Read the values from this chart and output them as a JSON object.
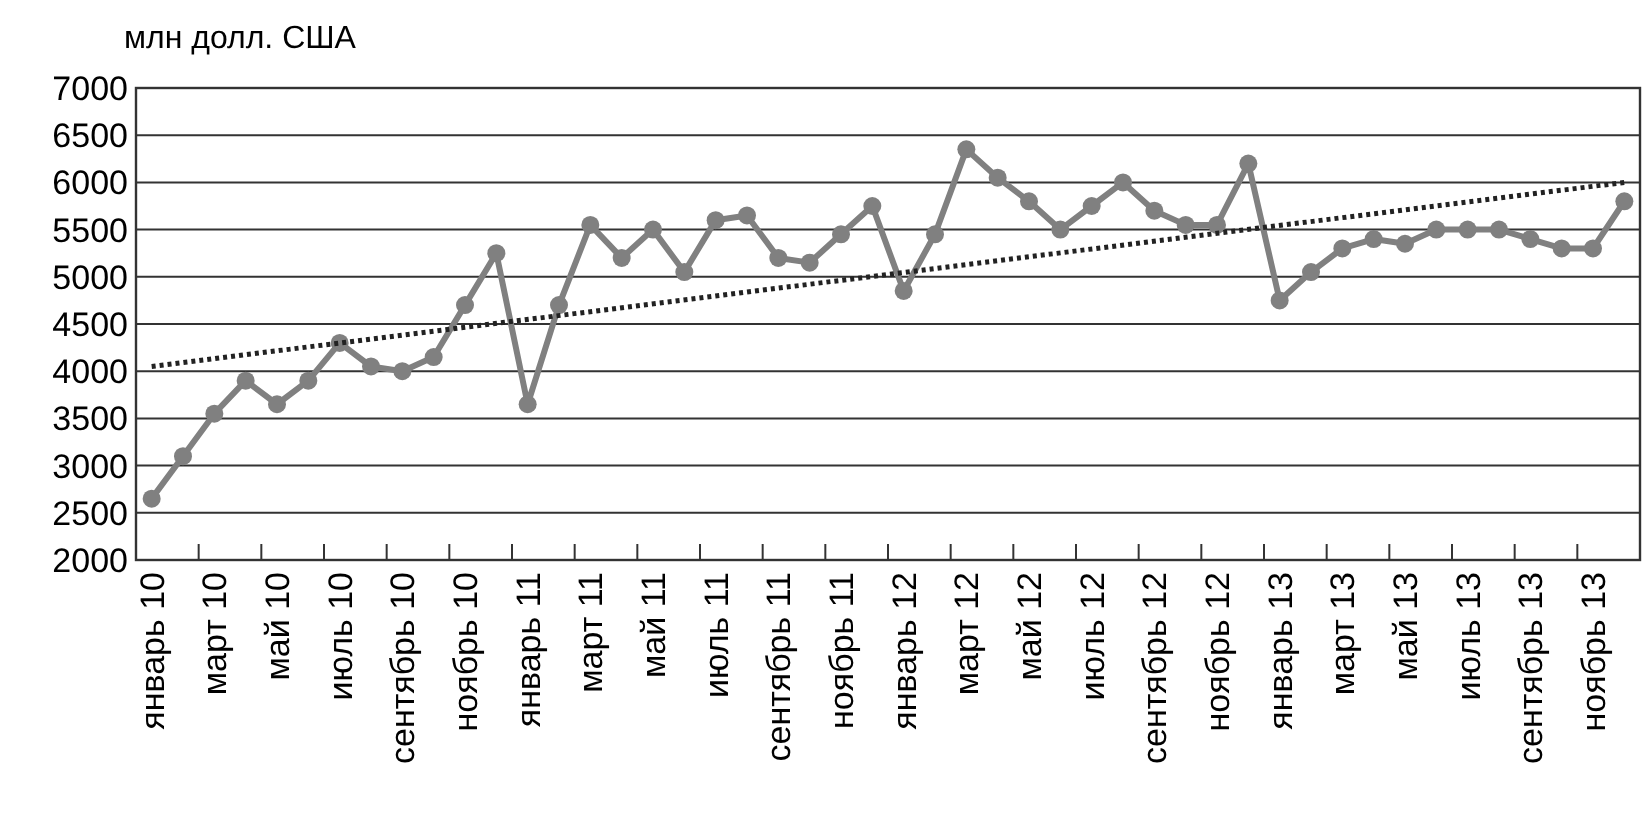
{
  "chart_data": {
    "type": "line",
    "ylabel": "млн долл. США",
    "categories": [
      "январь 10",
      null,
      "март 10",
      null,
      "май 10",
      null,
      "июль 10",
      null,
      "сентябрь 10",
      null,
      "ноябрь 10",
      null,
      "январь  11",
      null,
      "март 11",
      null,
      "май 11",
      null,
      "июль 11",
      null,
      "сентябрь 11",
      null,
      "ноябрь 11",
      null,
      "январь 12",
      null,
      "март 12",
      null,
      "май 12",
      null,
      "июль 12",
      null,
      "сентябрь 12",
      null,
      "ноябрь 12",
      null,
      "январь 13",
      null,
      "март 13",
      null,
      "май 13",
      null,
      "июль 13",
      null,
      "сентябрь 13",
      null,
      "ноябрь 13",
      null
    ],
    "series": [
      {
        "color": "#808080",
        "marker": "circle",
        "line_style": "solid",
        "values": [
          2650,
          3100,
          3550,
          3900,
          3650,
          3900,
          4300,
          4050,
          4000,
          4150,
          4700,
          5250,
          3650,
          4700,
          5550,
          5200,
          5500,
          5050,
          5600,
          5650,
          5200,
          5150,
          5450,
          5750,
          4850,
          5450,
          6350,
          6050,
          5800,
          5500,
          5750,
          6000,
          5700,
          5550,
          5550,
          6200,
          4750,
          5050,
          5300,
          5400,
          5350,
          5500,
          5500,
          5500,
          5400,
          5300,
          5300,
          5800
        ]
      },
      {
        "type": "line",
        "color": "#222222",
        "marker": "none",
        "line_style": "dotted",
        "values": [
          4050,
          null,
          null,
          null,
          null,
          null,
          null,
          null,
          null,
          null,
          null,
          null,
          null,
          null,
          null,
          null,
          null,
          null,
          null,
          null,
          null,
          null,
          null,
          null,
          null,
          null,
          null,
          null,
          null,
          null,
          null,
          null,
          null,
          null,
          null,
          null,
          null,
          null,
          null,
          null,
          null,
          null,
          null,
          null,
          null,
          null,
          null,
          6000
        ]
      }
    ],
    "ylim": [
      2000,
      7000
    ],
    "yticks": [
      2000,
      2500,
      3000,
      3500,
      4000,
      4500,
      5000,
      5500,
      6000,
      6500,
      7000
    ],
    "grid": "y"
  }
}
